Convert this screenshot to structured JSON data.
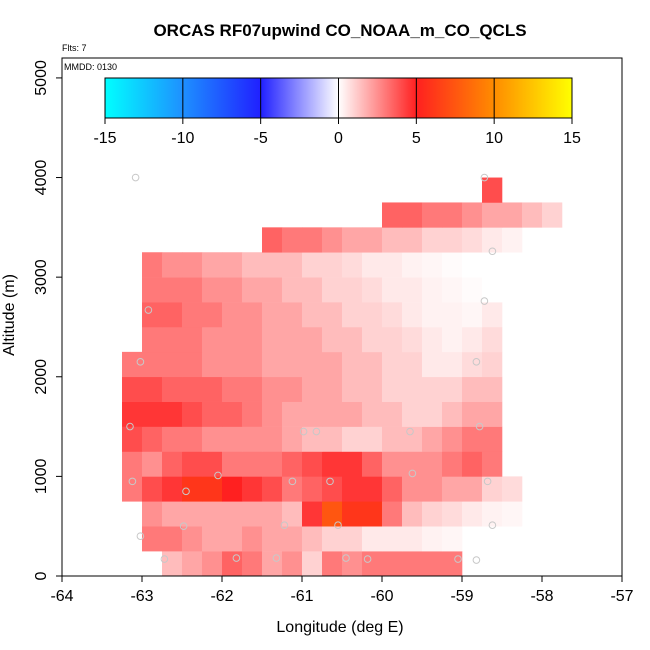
{
  "chart_data": {
    "type": "heatmap",
    "title": "ORCAS RF07upwind CO_NOAA_m_CO_QCLS",
    "flights_label": "Flts: 7",
    "mmdd_label": "MMDD: 0130",
    "xlabel": "Longitude (deg E)",
    "ylabel": "Altitude (m)",
    "xlim": [
      -64,
      -57
    ],
    "ylim": [
      0,
      5200
    ],
    "x_ticks": [
      -64,
      -63,
      -62,
      -61,
      -60,
      -59,
      -58,
      -57
    ],
    "x_tick_labels": [
      "-64",
      "-63",
      "-62",
      "-61",
      "-60",
      "-59",
      "-58",
      "-57"
    ],
    "y_ticks": [
      0,
      1000,
      2000,
      3000,
      4000,
      5000
    ],
    "y_tick_labels": [
      "0",
      "1000",
      "2000",
      "3000",
      "4000",
      "5000"
    ],
    "colorbar": {
      "range": [
        -15,
        15
      ],
      "ticks": [
        -15,
        -10,
        -5,
        0,
        5,
        10,
        15
      ],
      "tick_labels": [
        "-15",
        "-10",
        "-5",
        "0",
        "5",
        "10",
        "15"
      ],
      "stops": [
        {
          "value": -15,
          "color": "#00ffff"
        },
        {
          "value": -10,
          "color": "#1e90ff"
        },
        {
          "value": -5,
          "color": "#2020ff"
        },
        {
          "value": 0,
          "color": "#ffffff"
        },
        {
          "value": 5,
          "color": "#ff2020"
        },
        {
          "value": 10,
          "color": "#ff8c00"
        },
        {
          "value": 15,
          "color": "#ffff00"
        }
      ]
    },
    "cell_size": {
      "dlon": 0.25,
      "dalt": 250
    },
    "rows": [
      {
        "alt": 0,
        "lon_start": -62.75,
        "values": [
          1.5,
          2.0,
          2.5,
          3.5,
          3.0,
          2.0,
          2.5,
          1.0,
          3.0,
          2.5,
          3.0,
          3.0,
          3.0,
          3.0,
          3.0
        ]
      },
      {
        "alt": 250,
        "lon_start": -63.0,
        "values": [
          3.0,
          3.0,
          2.5,
          2.0,
          2.0,
          2.5,
          2.0,
          2.0,
          1.5,
          1.0,
          1.0,
          0.5,
          0.5,
          0.5,
          0.3,
          0.2
        ]
      },
      {
        "alt": 500,
        "lon_start": -63.0,
        "values": [
          2.5,
          2.0,
          2.0,
          2.0,
          2.0,
          2.0,
          2.0,
          1.5,
          4.5,
          7.5,
          6.0,
          6.0,
          3.0,
          1.5,
          1.0,
          0.8,
          0.5,
          0.3,
          0.2
        ]
      },
      {
        "alt": 750,
        "lon_start": -63.25,
        "values": [
          3.0,
          4.0,
          4.5,
          6.0,
          6.0,
          5.0,
          4.5,
          4.0,
          3.0,
          3.5,
          4.0,
          4.5,
          4.5,
          3.5,
          2.5,
          2.5,
          2.0,
          2.0,
          1.0,
          0.8
        ]
      },
      {
        "alt": 1000,
        "lon_start": -63.25,
        "values": [
          3.0,
          2.5,
          3.5,
          4.0,
          4.0,
          3.0,
          3.0,
          3.0,
          3.5,
          4.0,
          4.5,
          4.5,
          3.5,
          2.5,
          2.5,
          2.5,
          3.0,
          3.5,
          3.0
        ]
      },
      {
        "alt": 1250,
        "lon_start": -63.25,
        "values": [
          4.0,
          3.5,
          3.0,
          3.0,
          2.5,
          2.5,
          2.5,
          2.5,
          2.0,
          1.5,
          1.5,
          1.0,
          1.0,
          1.5,
          1.5,
          2.0,
          2.5,
          3.0,
          3.0
        ]
      },
      {
        "alt": 1500,
        "lon_start": -63.25,
        "values": [
          4.5,
          4.5,
          4.5,
          4.0,
          3.5,
          3.5,
          3.0,
          2.5,
          2.0,
          2.0,
          2.0,
          2.0,
          1.5,
          1.5,
          1.0,
          1.0,
          1.5,
          2.0,
          2.0
        ]
      },
      {
        "alt": 1750,
        "lon_start": -63.25,
        "values": [
          4.0,
          4.0,
          3.5,
          3.5,
          3.5,
          3.0,
          3.0,
          2.5,
          2.5,
          2.0,
          2.0,
          1.5,
          1.5,
          1.0,
          1.0,
          1.0,
          1.0,
          1.5,
          1.5
        ]
      },
      {
        "alt": 2000,
        "lon_start": -63.25,
        "values": [
          3.0,
          3.0,
          3.0,
          3.0,
          2.5,
          2.5,
          2.5,
          2.0,
          2.0,
          2.0,
          2.0,
          1.5,
          1.5,
          1.0,
          1.0,
          0.5,
          0.5,
          0.8,
          1.0
        ]
      },
      {
        "alt": 2250,
        "lon_start": -63.0,
        "values": [
          3.0,
          3.0,
          3.0,
          2.5,
          2.5,
          2.5,
          2.0,
          2.0,
          2.0,
          1.5,
          1.5,
          1.0,
          1.0,
          0.8,
          0.5,
          0.3,
          0.5,
          0.8
        ]
      },
      {
        "alt": 2500,
        "lon_start": -63.0,
        "values": [
          3.5,
          3.5,
          3.0,
          3.0,
          2.5,
          2.5,
          2.0,
          2.0,
          1.5,
          1.5,
          1.0,
          1.0,
          0.8,
          0.5,
          0.3,
          0.3,
          0.2,
          0.5
        ]
      },
      {
        "alt": 2750,
        "lon_start": -63.0,
        "values": [
          3.0,
          3.0,
          3.0,
          2.5,
          2.5,
          2.0,
          2.0,
          1.5,
          1.5,
          1.0,
          1.0,
          0.8,
          0.5,
          0.5,
          0.3,
          0.2,
          0.1,
          0.0
        ]
      },
      {
        "alt": 3000,
        "lon_start": -63.0,
        "values": [
          3.0,
          2.5,
          2.5,
          2.0,
          2.0,
          1.5,
          1.5,
          1.5,
          1.0,
          1.0,
          0.8,
          0.5,
          0.5,
          0.3,
          0.2,
          0.1,
          0.0,
          0.0
        ]
      },
      {
        "alt": 3250,
        "lon_start": -61.5,
        "values": [
          3.5,
          3.0,
          3.0,
          2.5,
          2.0,
          2.0,
          1.5,
          1.5,
          1.0,
          1.0,
          0.8,
          0.5,
          0.3
        ]
      },
      {
        "alt": 3500,
        "lon_start": -60.0,
        "values": [
          3.5,
          3.5,
          3.0,
          3.0,
          2.5,
          2.0,
          2.0,
          1.5,
          1.0
        ]
      },
      {
        "alt": 3750,
        "lon_start": -58.75,
        "values": [
          4.0
        ]
      }
    ],
    "sample_points": [
      {
        "lon": -63.08,
        "alt": 4000
      },
      {
        "lon": -58.72,
        "alt": 4000
      },
      {
        "lon": -58.62,
        "alt": 3260
      },
      {
        "lon": -62.92,
        "alt": 2670
      },
      {
        "lon": -58.72,
        "alt": 2760
      },
      {
        "lon": -63.02,
        "alt": 2150
      },
      {
        "lon": -58.82,
        "alt": 2150
      },
      {
        "lon": -63.15,
        "alt": 1500
      },
      {
        "lon": -60.98,
        "alt": 1450
      },
      {
        "lon": -60.82,
        "alt": 1450
      },
      {
        "lon": -59.65,
        "alt": 1450
      },
      {
        "lon": -58.78,
        "alt": 1500
      },
      {
        "lon": -63.12,
        "alt": 950
      },
      {
        "lon": -62.05,
        "alt": 1010
      },
      {
        "lon": -61.12,
        "alt": 950
      },
      {
        "lon": -60.65,
        "alt": 950
      },
      {
        "lon": -59.62,
        "alt": 1030
      },
      {
        "lon": -58.68,
        "alt": 950
      },
      {
        "lon": -62.45,
        "alt": 850
      },
      {
        "lon": -62.48,
        "alt": 500
      },
      {
        "lon": -61.22,
        "alt": 510
      },
      {
        "lon": -60.55,
        "alt": 510
      },
      {
        "lon": -58.62,
        "alt": 510
      },
      {
        "lon": -63.02,
        "alt": 400
      },
      {
        "lon": -62.72,
        "alt": 170
      },
      {
        "lon": -61.82,
        "alt": 180
      },
      {
        "lon": -61.32,
        "alt": 180
      },
      {
        "lon": -60.45,
        "alt": 180
      },
      {
        "lon": -60.18,
        "alt": 170
      },
      {
        "lon": -59.05,
        "alt": 170
      },
      {
        "lon": -58.82,
        "alt": 160
      }
    ]
  }
}
